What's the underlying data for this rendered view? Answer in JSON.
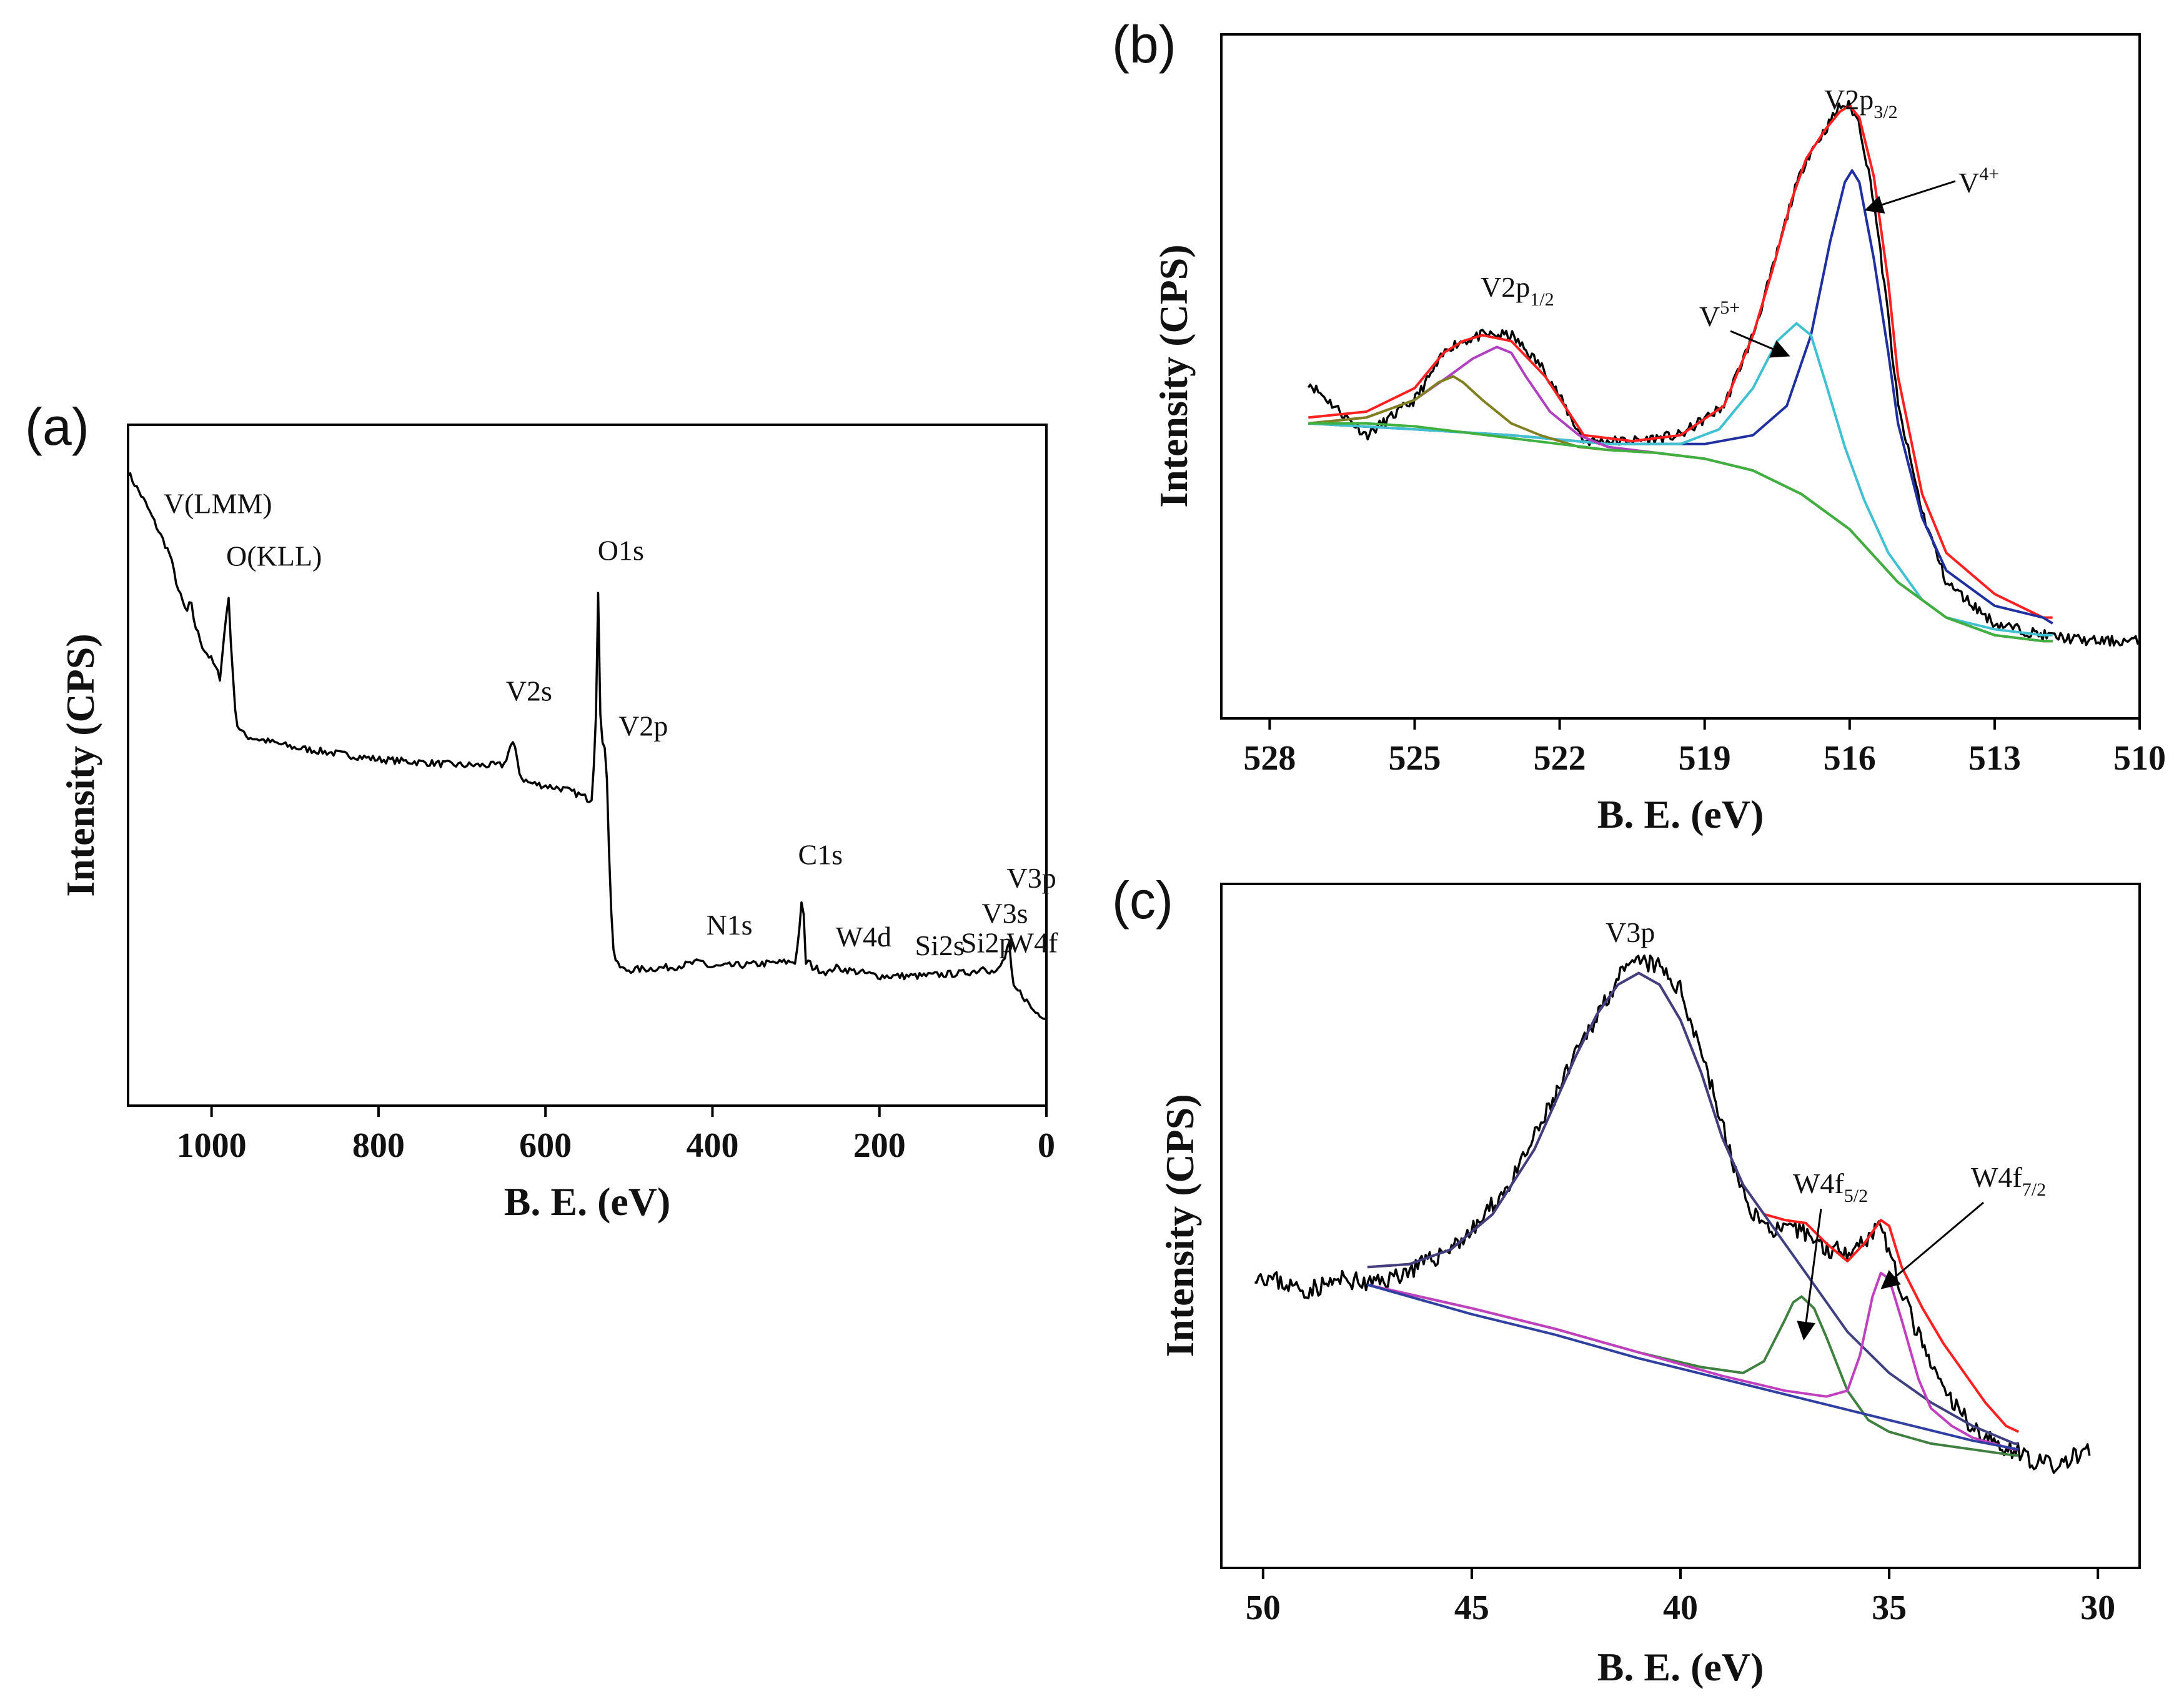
{
  "chart_data": [
    {
      "panel": "(a)",
      "type": "line",
      "xlabel": "B. E. (eV)",
      "ylabel": "Intensity (CPS)",
      "xlim": [
        1100,
        0
      ],
      "ylim": [
        0,
        100
      ],
      "xticks": [
        1000,
        800,
        600,
        400,
        200,
        0
      ],
      "series": [
        {
          "name": "survey",
          "color": "#000000",
          "x": [
            1100,
            1080,
            1060,
            1050,
            1040,
            1030,
            1025,
            1020,
            1010,
            1000,
            990,
            985,
            982,
            980,
            975,
            970,
            960,
            900,
            800,
            700,
            650,
            640,
            635,
            630,
            620,
            580,
            560,
            545,
            540,
            537,
            535,
            530,
            528,
            525,
            522,
            520,
            515,
            505,
            450,
            410,
            405,
            350,
            300,
            292,
            288,
            285,
            280,
            260,
            255,
            200,
            150,
            100,
            80,
            75,
            70,
            60,
            50,
            45,
            40,
            30,
            15,
            0
          ],
          "y": [
            100,
            95,
            89,
            86,
            80,
            76,
            78,
            74,
            70,
            68,
            65,
            72,
            76,
            80,
            66,
            57,
            55,
            53,
            51,
            50,
            50,
            54,
            52,
            48,
            47,
            46,
            45,
            44,
            55,
            81,
            60,
            50,
            57,
            40,
            28,
            20,
            16,
            15,
            15.5,
            16.5,
            15.5,
            16,
            16.5,
            28,
            16,
            16.5,
            15.5,
            14.5,
            15.5,
            14,
            14,
            14.5,
            15,
            16,
            15,
            14.5,
            17,
            20,
            12,
            11,
            8,
            7
          ]
        }
      ],
      "annotations": [
        {
          "text": "V(LMM)",
          "x": 1050,
          "y": 92
        },
        {
          "text": "O(KLL)",
          "x": 975,
          "y": 83
        },
        {
          "text": "O1s",
          "x": 530,
          "y": 84
        },
        {
          "text": "V2s",
          "x": 640,
          "y": 60
        },
        {
          "text": "V2p",
          "x": 505,
          "y": 54
        },
        {
          "text": "C1s",
          "x": 290,
          "y": 32
        },
        {
          "text": "N1s",
          "x": 400,
          "y": 20
        },
        {
          "text": "W4d",
          "x": 245,
          "y": 18
        },
        {
          "text": "Si2s",
          "x": 150,
          "y": 16.5
        },
        {
          "text": "Si2p",
          "x": 95,
          "y": 17
        },
        {
          "text": "V3s",
          "x": 70,
          "y": 22
        },
        {
          "text": "V3p",
          "x": 40,
          "y": 28
        },
        {
          "text": "W4f",
          "x": 40,
          "y": 17
        }
      ]
    },
    {
      "panel": "(b)",
      "type": "line",
      "xlabel": "B. E. (eV)",
      "ylabel": "Intensity (CPS)",
      "xlim": [
        529,
        510
      ],
      "ylim": [
        0,
        100
      ],
      "xticks": [
        528,
        525,
        522,
        519,
        516,
        513,
        510
      ],
      "series": [
        {
          "name": "raw",
          "color": "#000000",
          "x": [
            527.2,
            526,
            525,
            524.3,
            524,
            523.6,
            523,
            522.3,
            521.5,
            520.5,
            519.5,
            518.6,
            518,
            517.6,
            517.2,
            516.9,
            516.5,
            516.2,
            516,
            515.8,
            515.5,
            515.2,
            515,
            514.5,
            514,
            513,
            512,
            511,
            510
          ],
          "y": [
            49,
            40,
            46,
            55,
            56,
            57,
            57,
            51,
            39,
            39,
            40,
            45,
            57,
            68,
            80,
            87,
            92,
            96,
            96,
            93,
            80,
            60,
            45,
            27,
            15,
            8,
            6,
            5,
            5
          ]
        },
        {
          "name": "envelope",
          "color": "#ff2020",
          "x": [
            527.2,
            526,
            525,
            524.4,
            524,
            523.6,
            523,
            522.3,
            521.5,
            520.5,
            519.5,
            518.6,
            518,
            517.6,
            517.2,
            516.9,
            516.5,
            516.2,
            516,
            515.8,
            515.5,
            515.2,
            515,
            514.5,
            514,
            513,
            512,
            511.8
          ],
          "y": [
            43,
            44,
            48,
            54,
            56,
            57,
            56,
            50,
            40,
            39,
            40,
            45,
            57,
            68,
            80,
            87,
            92,
            95,
            96,
            94,
            84,
            66,
            50,
            30,
            20,
            13,
            9,
            9
          ]
        },
        {
          "name": "V4+",
          "color": "#2030a0",
          "x": [
            527.2,
            525,
            523,
            521,
            519,
            518,
            517.3,
            516.8,
            516.4,
            516.1,
            515.95,
            515.8,
            515.5,
            515.2,
            515,
            514.5,
            514,
            513,
            512,
            511.8
          ],
          "y": [
            42,
            41,
            40,
            38.5,
            38.5,
            40,
            45,
            57,
            73,
            83,
            85,
            83,
            70,
            54,
            42,
            26,
            17,
            11,
            9,
            8
          ]
        },
        {
          "name": "V5+",
          "color": "#40c0d0",
          "x": [
            527.2,
            525,
            523,
            521,
            519.5,
            518.7,
            518,
            517.5,
            517.1,
            516.8,
            516.5,
            516.1,
            515.7,
            515.2,
            514.5,
            514,
            513,
            512,
            511.8
          ],
          "y": [
            42,
            41,
            40,
            38.5,
            38.5,
            41,
            48,
            56,
            59,
            57,
            49,
            38,
            29,
            20,
            12,
            9,
            7,
            6,
            6
          ]
        },
        {
          "name": "V2p1/2 (V5+)",
          "color": "#b040c0",
          "x": [
            527.2,
            526,
            525,
            524.3,
            523.8,
            523.3,
            523,
            522.7,
            522.2,
            521.6,
            521,
            520,
            519,
            518,
            517,
            516,
            515,
            514,
            513,
            512,
            511.8
          ],
          "y": [
            42,
            43,
            46,
            50,
            53,
            55,
            54,
            50,
            44,
            40,
            38,
            37,
            36,
            34,
            30,
            24,
            15,
            9,
            6,
            5,
            5
          ]
        },
        {
          "name": "V2p1/2 (V4+)",
          "color": "#808020",
          "x": [
            527.2,
            526,
            525,
            524.5,
            524.2,
            524,
            523.6,
            523,
            522.4,
            521.6,
            521,
            520,
            519,
            518,
            517,
            516,
            515,
            514,
            513,
            512,
            511.8
          ],
          "y": [
            42,
            43,
            46,
            49,
            50,
            49,
            46,
            42,
            40,
            38,
            37.5,
            37,
            36,
            34,
            30,
            24,
            15,
            9,
            6,
            5,
            5
          ]
        },
        {
          "name": "background",
          "color": "#40b040",
          "x": [
            527.2,
            526,
            525,
            524,
            523,
            522,
            521,
            520,
            519,
            518,
            517,
            516,
            515,
            514,
            513,
            512,
            511.8
          ],
          "y": [
            42,
            42,
            41.5,
            40.5,
            39.5,
            38.5,
            37.5,
            37,
            36,
            34,
            30,
            24,
            15,
            9,
            6,
            5,
            5
          ]
        }
      ],
      "annotations": [
        {
          "text": "V2p",
          "sub": "3/2"
        },
        {
          "text": "V2p",
          "sub": "1/2"
        },
        {
          "text": "V",
          "sup": "4+"
        },
        {
          "text": "V",
          "sup": "5+"
        }
      ]
    },
    {
      "panel": "(c)",
      "type": "line",
      "xlabel": "B. E. (eV)",
      "ylabel": "Intensity (CPS)",
      "xlim": [
        51,
        29
      ],
      "ylim": [
        0,
        100
      ],
      "xticks": [
        50,
        45,
        40,
        35,
        30
      ],
      "series": [
        {
          "name": "raw",
          "color": "#000000",
          "x": [
            50.2,
            49,
            48,
            47.5,
            47,
            46,
            45,
            44,
            43,
            42,
            41.5,
            41,
            40.5,
            40,
            39.5,
            39,
            38.5,
            38,
            37.5,
            37,
            36.5,
            36,
            35.5,
            35.2,
            35,
            34.5,
            34,
            33.5,
            33,
            32.5,
            32,
            31.5,
            31,
            30.5,
            30.2
          ],
          "y": [
            42,
            39,
            41,
            40,
            41,
            44,
            49,
            58,
            72,
            86,
            92,
            95,
            94,
            90,
            80,
            67,
            55,
            50,
            49,
            49,
            46,
            46,
            48,
            51,
            45,
            35,
            26,
            20,
            16,
            13,
            12,
            10,
            9,
            11,
            12
          ]
        },
        {
          "name": "envelope",
          "color": "#ff2020",
          "x": [
            47.5,
            46.5,
            45.5,
            44.5,
            43.5,
            42.5,
            42,
            41.5,
            41,
            40.5,
            40,
            39.5,
            39,
            38.5,
            38,
            37.5,
            37,
            36.5,
            36,
            35.6,
            35.2,
            35,
            34.7,
            34.2,
            33.7,
            33.2,
            32.7,
            32.2,
            31.9
          ],
          "y": [
            43,
            43.5,
            46,
            52,
            63,
            79,
            86,
            91,
            93,
            91,
            85,
            76,
            65,
            57,
            52,
            51,
            50.5,
            47,
            44,
            47,
            51,
            50,
            43,
            36,
            30,
            25,
            20,
            16,
            15
          ]
        },
        {
          "name": "V3p component",
          "color": "#404080",
          "x": [
            47.5,
            46.5,
            45.5,
            44.5,
            43.5,
            42.5,
            42,
            41.5,
            41,
            40.5,
            40,
            39.5,
            39,
            38.5,
            38,
            37.5,
            37,
            36.5,
            36,
            35,
            34,
            33,
            32,
            31.9
          ],
          "y": [
            43,
            43.5,
            46,
            52,
            63,
            79,
            86,
            91,
            93,
            91,
            85,
            76,
            65,
            57,
            52,
            47,
            42,
            37,
            32,
            25,
            20,
            16,
            13,
            13
          ]
        },
        {
          "name": "W4f5/2",
          "color": "#408040",
          "x": [
            47.5,
            45,
            43,
            41,
            39.5,
            38.5,
            38,
            37.5,
            37.3,
            37.1,
            36.8,
            36.5,
            36,
            35.5,
            35,
            34.5,
            34,
            33,
            32,
            31.9
          ],
          "y": [
            40,
            36,
            32.5,
            28.5,
            26,
            25,
            27,
            34,
            37,
            38,
            36,
            31,
            22,
            17,
            15,
            14,
            13,
            12,
            11,
            11
          ]
        },
        {
          "name": "W4f7/2",
          "color": "#c040c0",
          "x": [
            47.5,
            45,
            43,
            41,
            39,
            37.5,
            36.5,
            36,
            35.7,
            35.4,
            35.2,
            35,
            34.7,
            34.3,
            34,
            33.5,
            33,
            32,
            31.9
          ],
          "y": [
            40,
            36,
            32.5,
            28.5,
            24.5,
            22,
            21,
            22,
            28,
            38,
            42,
            41,
            34,
            24,
            19,
            16,
            14,
            12,
            12
          ]
        },
        {
          "name": "background",
          "color": "#3040a0",
          "x": [
            47.5,
            45,
            43,
            41,
            39,
            37,
            35,
            33,
            31.9
          ],
          "y": [
            40,
            35,
            31.5,
            27.5,
            24,
            20.5,
            17,
            13.5,
            12
          ]
        }
      ],
      "annotations": [
        {
          "text": "V3p"
        },
        {
          "text": "W4f",
          "sub": "5/2"
        },
        {
          "text": "W4f",
          "sub": "7/2"
        }
      ]
    }
  ]
}
